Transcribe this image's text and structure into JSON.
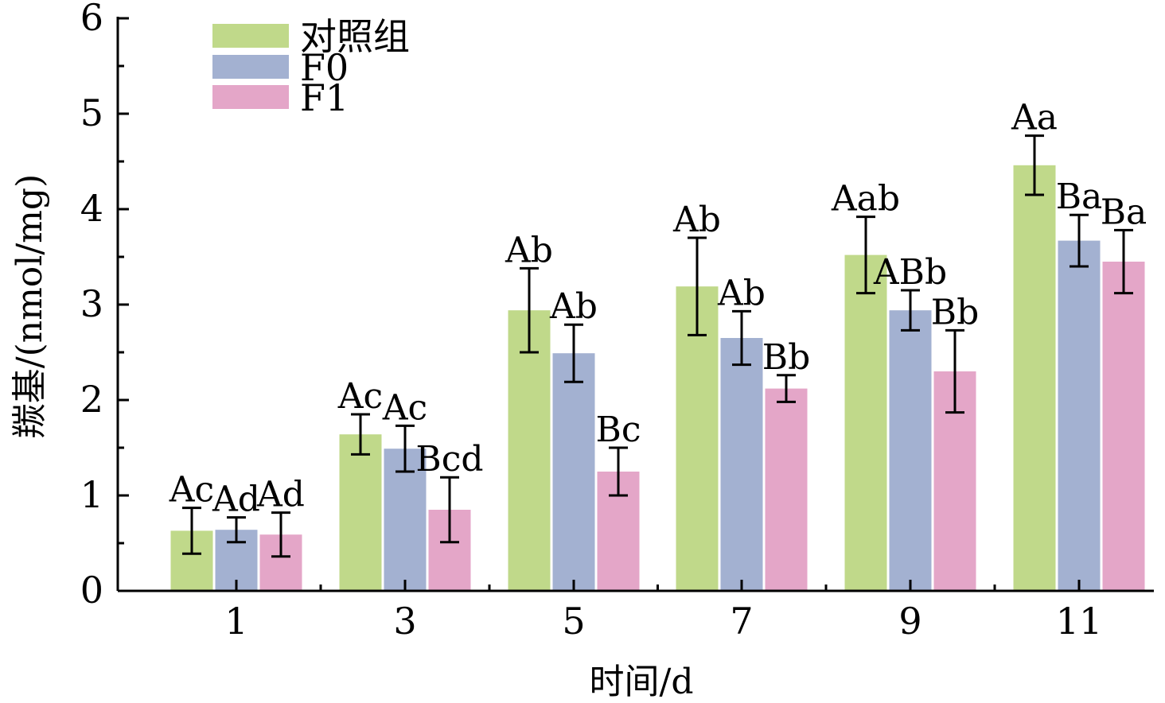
{
  "chart_data": {
    "type": "bar",
    "xlabel": "时间/d",
    "ylabel": "羰基/(nmol/mg)",
    "ylim": [
      0,
      6
    ],
    "yticks": [
      0,
      1,
      2,
      3,
      4,
      5,
      6
    ],
    "categories": [
      "1",
      "3",
      "5",
      "7",
      "9",
      "11"
    ],
    "grid": false,
    "legend_position": "top-left",
    "series": [
      {
        "name": "对照组",
        "color": "#c0d98a",
        "values": [
          0.63,
          1.64,
          2.94,
          3.19,
          3.52,
          4.46
        ],
        "errors": [
          0.24,
          0.21,
          0.44,
          0.51,
          0.4,
          0.31
        ],
        "labels": [
          "Ac",
          "Ac",
          "Ab",
          "Ab",
          "Aab",
          "Aa"
        ]
      },
      {
        "name": "F0",
        "color": "#a3b1d1",
        "values": [
          0.64,
          1.49,
          2.49,
          2.65,
          2.94,
          3.67
        ],
        "errors": [
          0.13,
          0.24,
          0.3,
          0.28,
          0.21,
          0.27
        ],
        "labels": [
          "Ad",
          "Ac",
          "Ab",
          "Ab",
          "ABb",
          "Ba"
        ]
      },
      {
        "name": "F1",
        "color": "#e4a6c8",
        "values": [
          0.59,
          0.85,
          1.25,
          2.12,
          2.3,
          3.45
        ],
        "errors": [
          0.23,
          0.34,
          0.25,
          0.14,
          0.43,
          0.33
        ],
        "labels": [
          "Ad",
          "Bcd",
          "Bc",
          "Bb",
          "Bb",
          "Ba"
        ]
      }
    ]
  }
}
